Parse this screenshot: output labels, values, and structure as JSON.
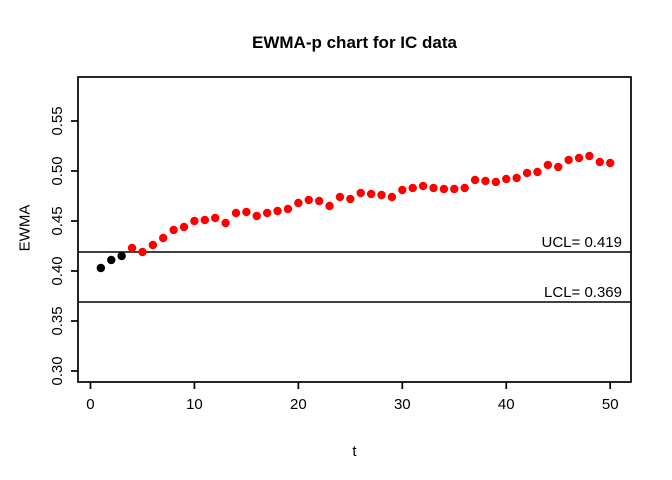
{
  "window": {
    "background": "#FFFFFF"
  },
  "chart_data": {
    "type": "scatter",
    "title": "EWMA-p chart for IC data",
    "xlabel": "t",
    "ylabel": "EWMA",
    "xlim": [
      -1.2,
      52.0
    ],
    "ylim": [
      0.289,
      0.594
    ],
    "x_ticks": [
      0,
      10,
      20,
      30,
      40,
      50
    ],
    "x_tick_labels": [
      "0",
      "10",
      "20",
      "30",
      "40",
      "50"
    ],
    "y_ticks": [
      0.3,
      0.35,
      0.4,
      0.45,
      0.5,
      0.55
    ],
    "y_tick_labels": [
      "0.30",
      "0.35",
      "0.40",
      "0.45",
      "0.50",
      "0.55"
    ],
    "grid": false,
    "legend": null,
    "axis_color": "#000000",
    "ucl": {
      "label": "UCL= 0.419",
      "value": 0.419
    },
    "lcl": {
      "label": "LCL= 0.369",
      "value": 0.369
    },
    "point_radius": 4.2,
    "series": [
      {
        "name": "in-control-points",
        "color": "#000000",
        "points": [
          [
            1,
            0.403
          ],
          [
            2,
            0.411
          ],
          [
            3,
            0.415
          ]
        ]
      },
      {
        "name": "out-of-control-points",
        "color": "#FF0000",
        "points": [
          [
            4,
            0.423
          ],
          [
            5,
            0.419
          ],
          [
            6,
            0.426
          ],
          [
            7,
            0.433
          ],
          [
            8,
            0.441
          ],
          [
            9,
            0.444
          ],
          [
            10,
            0.45
          ],
          [
            11,
            0.451
          ],
          [
            12,
            0.453
          ],
          [
            13,
            0.448
          ],
          [
            14,
            0.458
          ],
          [
            15,
            0.459
          ],
          [
            16,
            0.455
          ],
          [
            17,
            0.458
          ],
          [
            18,
            0.46
          ],
          [
            19,
            0.462
          ],
          [
            20,
            0.468
          ],
          [
            21,
            0.471
          ],
          [
            22,
            0.47
          ],
          [
            23,
            0.465
          ],
          [
            24,
            0.474
          ],
          [
            25,
            0.472
          ],
          [
            26,
            0.478
          ],
          [
            27,
            0.477
          ],
          [
            28,
            0.476
          ],
          [
            29,
            0.474
          ],
          [
            30,
            0.481
          ],
          [
            31,
            0.483
          ],
          [
            32,
            0.485
          ],
          [
            33,
            0.483
          ],
          [
            34,
            0.482
          ],
          [
            35,
            0.482
          ],
          [
            36,
            0.483
          ],
          [
            37,
            0.491
          ],
          [
            38,
            0.49
          ],
          [
            39,
            0.489
          ],
          [
            40,
            0.492
          ],
          [
            41,
            0.493
          ],
          [
            42,
            0.498
          ],
          [
            43,
            0.499
          ],
          [
            44,
            0.506
          ],
          [
            45,
            0.504
          ],
          [
            46,
            0.511
          ],
          [
            47,
            0.513
          ],
          [
            48,
            0.515
          ],
          [
            49,
            0.509
          ],
          [
            50,
            0.508
          ]
        ]
      }
    ]
  }
}
